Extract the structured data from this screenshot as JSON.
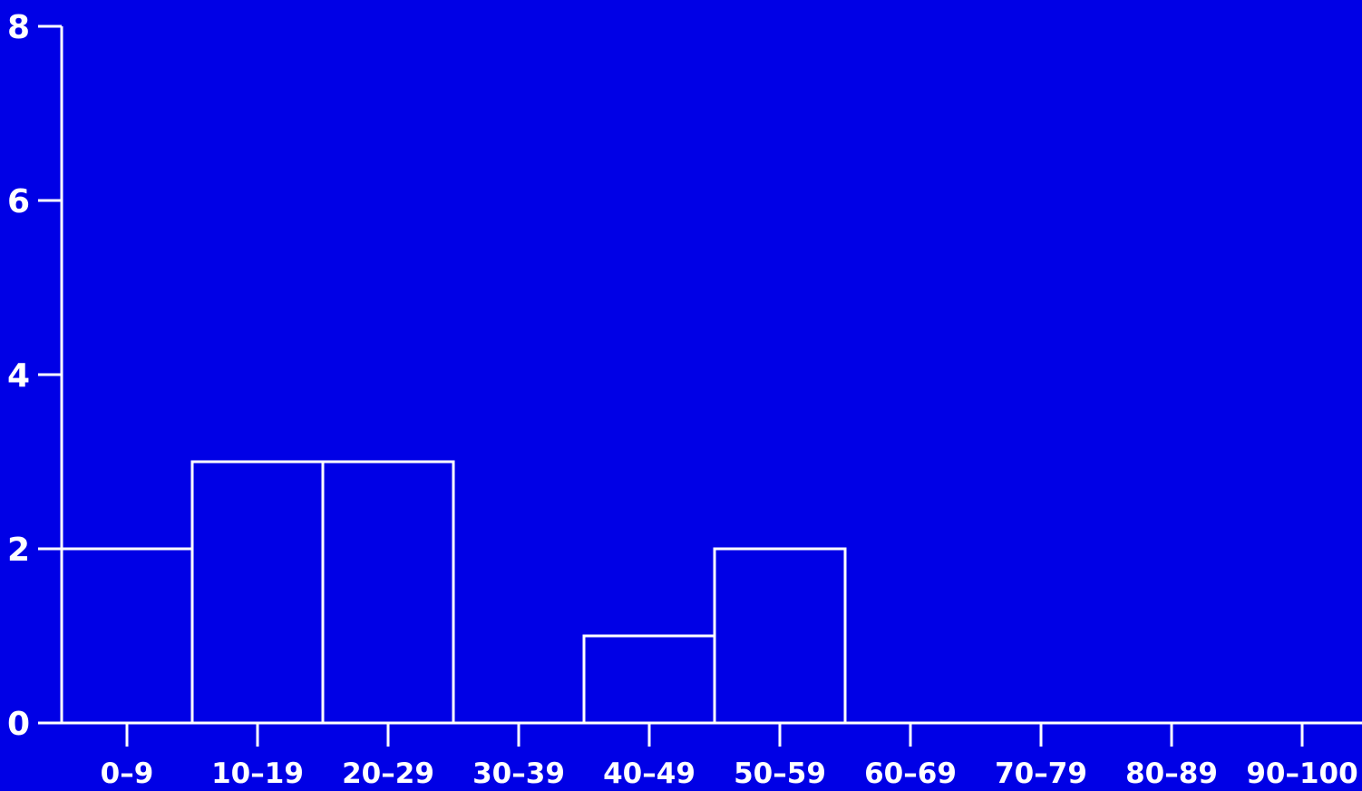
{
  "colors": {
    "background": "#0000e6",
    "foreground": "#ffffff"
  },
  "chart_data": {
    "type": "bar",
    "title": "",
    "xlabel": "",
    "ylabel": "",
    "categories": [
      "0–9",
      "10–19",
      "20–29",
      "30–39",
      "40–49",
      "50–59",
      "60–69",
      "70–79",
      "80–89",
      "90–100"
    ],
    "values": [
      2,
      3,
      3,
      0,
      1,
      2,
      0,
      0,
      0,
      0
    ],
    "ylim": [
      0,
      8
    ],
    "yticks": [
      "0",
      "2",
      "4",
      "6",
      "8"
    ],
    "grid": false,
    "legend": "none"
  }
}
